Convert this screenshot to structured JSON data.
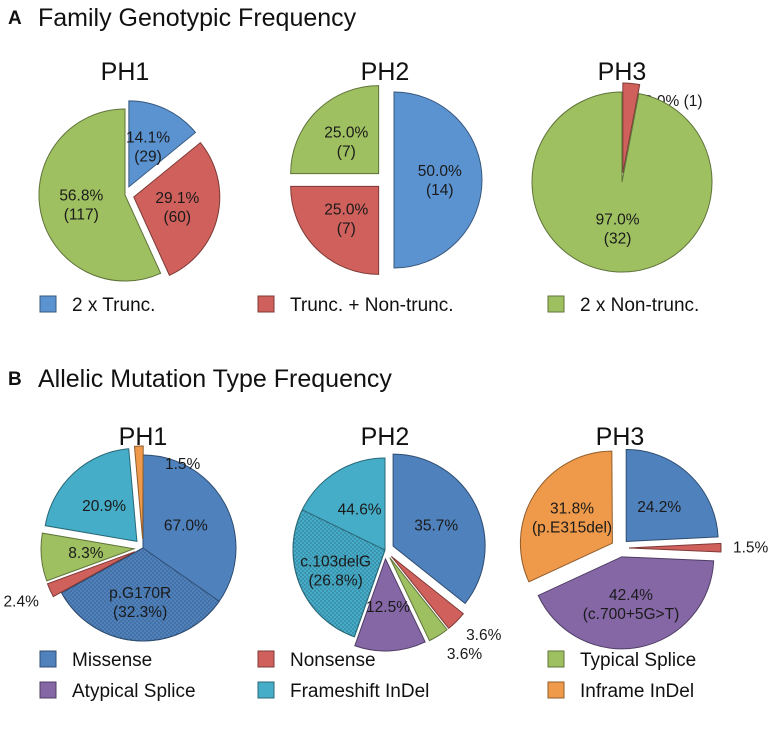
{
  "colors": {
    "blue_a": "#5b93d1",
    "red": "#d0605c",
    "green": "#9fc061",
    "blue": "#4f81bd",
    "purple": "#8567a6",
    "cyan": "#45adc7",
    "orange": "#ef9a4a"
  },
  "chart_data": [
    {
      "type": "pie",
      "panel_letter": "A",
      "panel_title": "Family Genotypic Frequency",
      "title": "PH1",
      "slices": [
        {
          "category": "2 x Trunc.",
          "percent": 14.1,
          "count": 29,
          "color": "#5b93d1",
          "exploded": true
        },
        {
          "category": "Trunc. + Non-trunc.",
          "percent": 29.1,
          "count": 60,
          "color": "#d0605c",
          "exploded": true
        },
        {
          "category": "2 x Non-trunc.",
          "percent": 56.8,
          "count": 117,
          "color": "#9fc061",
          "exploded": false
        }
      ]
    },
    {
      "type": "pie",
      "panel_letter": "A",
      "title": "PH2",
      "slices": [
        {
          "category": "2 x Trunc.",
          "percent": 50.0,
          "count": 14,
          "color": "#5b93d1",
          "exploded": true
        },
        {
          "category": "Trunc. + Non-trunc.",
          "percent": 25.0,
          "count": 7,
          "color": "#d0605c",
          "exploded": true
        },
        {
          "category": "2 x Non-trunc.",
          "percent": 25.0,
          "count": 7,
          "color": "#9fc061",
          "exploded": true
        }
      ]
    },
    {
      "type": "pie",
      "panel_letter": "A",
      "title": "PH3",
      "slices": [
        {
          "category": "Trunc. + Non-trunc.",
          "percent": 3.0,
          "count": 1,
          "color": "#d0605c",
          "exploded": true
        },
        {
          "category": "2 x Non-trunc.",
          "percent": 97.0,
          "count": 32,
          "color": "#9fc061",
          "exploded": false
        }
      ]
    },
    {
      "type": "pie",
      "panel_letter": "B",
      "panel_title": "Allelic Mutation Type Frequency",
      "title": "PH1",
      "slices": [
        {
          "category": "Missense",
          "percent": 67.0,
          "color": "#4f81bd",
          "exploded": false,
          "sub": {
            "label": "p.G170R",
            "percent": 32.3,
            "pattern": "dotted",
            "position": "end"
          }
        },
        {
          "category": "Nonsense",
          "percent": 2.4,
          "color": "#d0605c",
          "exploded": true
        },
        {
          "category": "Typical Splice",
          "percent": 8.3,
          "color": "#9fc061",
          "exploded": true
        },
        {
          "category": "Frameshift InDel",
          "percent": 20.9,
          "color": "#45adc7",
          "exploded": true
        },
        {
          "category": "Inframe InDel",
          "percent": 1.5,
          "color": "#ef9a4a",
          "exploded": true
        }
      ]
    },
    {
      "type": "pie",
      "panel_letter": "B",
      "title": "PH2",
      "slices": [
        {
          "category": "Missense",
          "percent": 35.7,
          "color": "#4f81bd",
          "exploded": true
        },
        {
          "category": "Nonsense",
          "percent": 3.6,
          "color": "#d0605c",
          "exploded": true
        },
        {
          "category": "Typical Splice",
          "percent": 3.6,
          "color": "#9fc061",
          "exploded": true
        },
        {
          "category": "Atypical Splice",
          "percent": 12.5,
          "color": "#8567a6",
          "exploded": true
        },
        {
          "category": "Frameshift InDel",
          "percent": 44.6,
          "color": "#45adc7",
          "exploded": false,
          "sub": {
            "label": "c.103delG",
            "percent": 26.8,
            "pattern": "dotted",
            "position": "start"
          }
        }
      ]
    },
    {
      "type": "pie",
      "panel_letter": "B",
      "title": "PH3",
      "slices": [
        {
          "category": "Missense",
          "percent": 24.2,
          "color": "#4f81bd",
          "exploded": true
        },
        {
          "category": "Nonsense",
          "percent": 1.5,
          "color": "#d0605c",
          "exploded": true
        },
        {
          "category": "Atypical Splice",
          "percent": 42.4,
          "color": "#8567a6",
          "exploded": true,
          "sub": {
            "label": "c.700+5G>T",
            "percent": 42.4,
            "pattern": "none",
            "position": "whole"
          }
        },
        {
          "category": "Inframe InDel",
          "percent": 31.8,
          "color": "#ef9a4a",
          "exploded": true,
          "sub": {
            "label": "p.E315del",
            "percent": 31.8,
            "pattern": "none",
            "position": "whole"
          }
        }
      ]
    }
  ],
  "panel_a": {
    "letter": "A",
    "title": "Family Genotypic Frequency",
    "legend": [
      {
        "label": "2 x Trunc.",
        "color": "#5b93d1"
      },
      {
        "label": "Trunc. + Non-trunc.",
        "color": "#d0605c"
      },
      {
        "label": "2 x Non-trunc.",
        "color": "#9fc061"
      }
    ]
  },
  "panel_b": {
    "letter": "B",
    "title": "Allelic Mutation Type Frequency",
    "legend": [
      {
        "label": "Missense",
        "color": "#4f81bd"
      },
      {
        "label": "Nonsense",
        "color": "#d0605c"
      },
      {
        "label": "Typical Splice",
        "color": "#9fc061"
      },
      {
        "label": "Atypical Splice",
        "color": "#8567a6"
      },
      {
        "label": "Frameshift InDel",
        "color": "#45adc7"
      },
      {
        "label": "Inframe InDel",
        "color": "#ef9a4a"
      }
    ]
  }
}
